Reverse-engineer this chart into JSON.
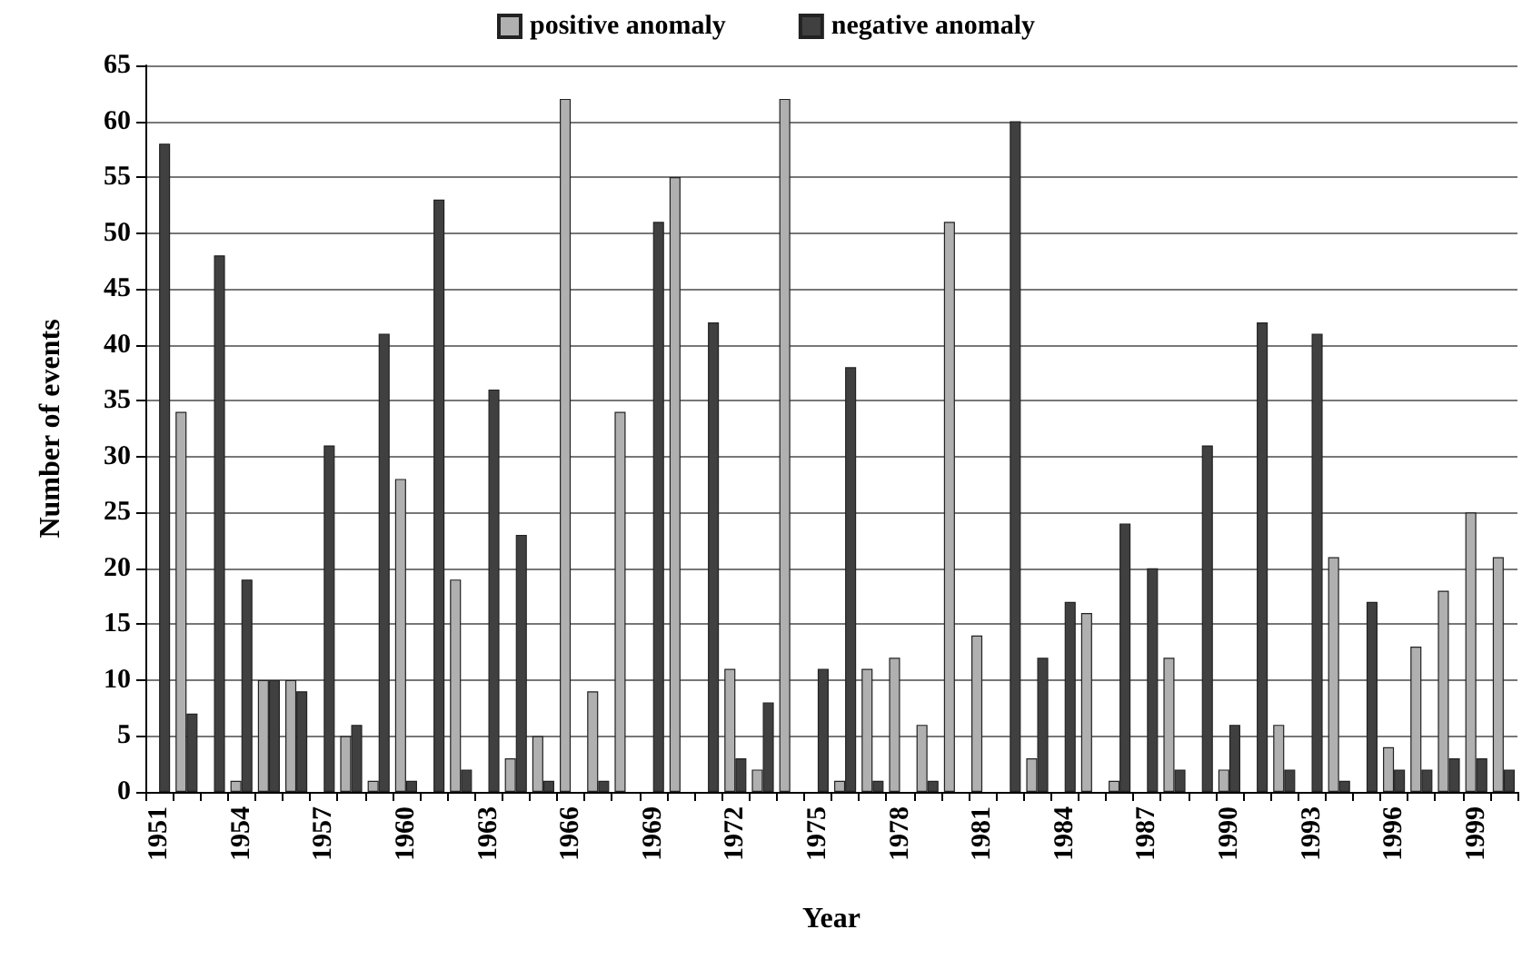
{
  "chart_data": {
    "type": "bar",
    "xlabel": "Year",
    "ylabel": "Number of events",
    "categories": [
      "1951",
      null,
      null,
      "1954",
      null,
      null,
      "1957",
      null,
      null,
      "1960",
      null,
      null,
      "1963",
      null,
      null,
      "1966",
      null,
      null,
      "1969",
      null,
      null,
      "1972",
      null,
      null,
      "1975",
      null,
      null,
      "1978",
      null,
      null,
      "1981",
      null,
      null,
      "1984",
      null,
      null,
      "1987",
      null,
      null,
      "1990",
      null,
      null,
      "1993",
      null,
      null,
      "1996",
      null,
      null,
      "1999",
      null
    ],
    "series": [
      {
        "name": "positive anomaly",
        "color": "#b0b0b0",
        "values": [
          0,
          34,
          0,
          1,
          10,
          10,
          0,
          5,
          1,
          28,
          0,
          19,
          0,
          3,
          5,
          62,
          9,
          34,
          0,
          55,
          0,
          11,
          2,
          62,
          0,
          1,
          11,
          12,
          6,
          51,
          14,
          0,
          3,
          0,
          16,
          1,
          0,
          12,
          0,
          2,
          0,
          6,
          0,
          21,
          0,
          4,
          13,
          18,
          25,
          21
        ]
      },
      {
        "name": "negative anomaly",
        "color": "#404040",
        "values": [
          58,
          7,
          48,
          19,
          10,
          9,
          31,
          6,
          41,
          1,
          53,
          2,
          36,
          23,
          1,
          0,
          1,
          0,
          51,
          0,
          42,
          3,
          8,
          0,
          11,
          38,
          1,
          0,
          1,
          0,
          0,
          60,
          12,
          17,
          0,
          24,
          20,
          2,
          31,
          6,
          42,
          2,
          41,
          1,
          17,
          2,
          2,
          3,
          3,
          2
        ]
      }
    ],
    "ylim": [
      0,
      65
    ],
    "yticks": [
      0,
      5,
      10,
      15,
      20,
      25,
      30,
      35,
      40,
      45,
      50,
      55,
      60,
      65
    ],
    "grid": "y",
    "legend": "top"
  }
}
